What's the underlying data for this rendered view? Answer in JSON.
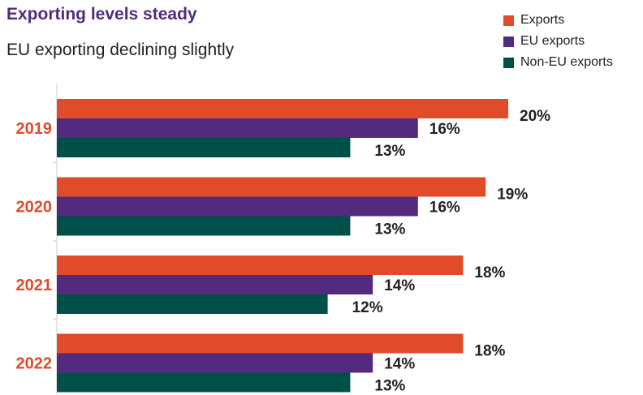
{
  "chart_data": {
    "type": "bar",
    "orientation": "horizontal",
    "title": "Exporting levels steady",
    "subtitle": "EU exporting declining slightly",
    "categories": [
      "2019",
      "2020",
      "2021",
      "2022"
    ],
    "series": [
      {
        "name": "Exports",
        "color": "#e04b2a",
        "values": [
          20,
          19,
          18,
          18
        ],
        "labels": [
          "20%",
          "19%",
          "18%",
          "18%"
        ]
      },
      {
        "name": "EU exports",
        "color": "#542a7e",
        "values": [
          16,
          16,
          14,
          14
        ],
        "labels": [
          "16%",
          "16%",
          "14%",
          "14%"
        ]
      },
      {
        "name": "Non-EU exports",
        "color": "#005049",
        "values": [
          13,
          13,
          12,
          13
        ],
        "labels": [
          "13%",
          "13%",
          "12%",
          "13%"
        ]
      }
    ],
    "xlim": [
      0,
      20
    ],
    "value_unit": "%",
    "legend_position": "top-right",
    "grid": false,
    "category_label_color": "#e04b2a"
  }
}
